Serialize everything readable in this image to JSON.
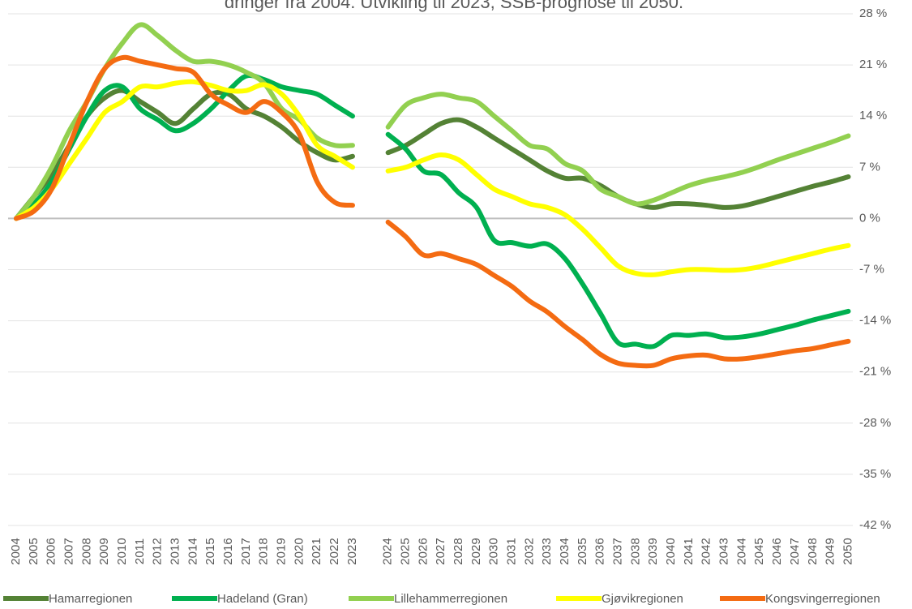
{
  "chart_data": {
    "type": "line",
    "title": "dringer fra 2004. Utvikling til 2023, SSB-prognose til 2050.",
    "categories": [
      "2004",
      "2005",
      "2006",
      "2007",
      "2008",
      "2009",
      "2010",
      "2011",
      "2012",
      "2013",
      "2014",
      "2015",
      "2016",
      "2017",
      "2018",
      "2019",
      "2020",
      "2021",
      "2022",
      "2023",
      null,
      "2024",
      "2025",
      "2026",
      "2027",
      "2028",
      "2029",
      "2030",
      "2031",
      "2032",
      "2033",
      "2034",
      "2035",
      "2036",
      "2037",
      "2038",
      "2039",
      "2040",
      "2041",
      "2042",
      "2043",
      "2044",
      "2045",
      "2046",
      "2047",
      "2048",
      "2049",
      "2050"
    ],
    "series": [
      {
        "name": "Hamarregionen",
        "color": "#548235",
        "values": [
          0,
          3,
          6,
          10,
          14,
          16.5,
          17.5,
          16,
          14.5,
          13,
          15,
          17,
          17,
          15,
          14,
          12.5,
          10.5,
          9,
          8,
          8.5,
          null,
          9,
          10,
          11.5,
          13,
          13.5,
          12.5,
          11,
          9.5,
          8,
          6.5,
          5.5,
          5.5,
          4.5,
          3,
          2,
          1.5,
          2,
          2,
          1.8,
          1.5,
          1.7,
          2.3,
          3,
          3.7,
          4.4,
          5,
          5.7
        ]
      },
      {
        "name": "Hadeland (Gran)",
        "color": "#00b050",
        "values": [
          0,
          2,
          5,
          9.5,
          14,
          17.5,
          18,
          15,
          13.5,
          12,
          13,
          15,
          17.5,
          19.5,
          19,
          18,
          17.5,
          17,
          15.5,
          14,
          null,
          11.5,
          9.5,
          6.5,
          6,
          3.5,
          1.5,
          -3,
          -3.3,
          -3.8,
          -3.5,
          -5.5,
          -9,
          -13,
          -17,
          -17.2,
          -17.5,
          -16,
          -16,
          -15.8,
          -16.3,
          -16.2,
          -15.8,
          -15.2,
          -14.6,
          -13.9,
          -13.3,
          -12.7
        ]
      },
      {
        "name": "Lillehammerregionen",
        "color": "#92d050",
        "values": [
          0,
          3,
          7,
          12,
          16,
          20.5,
          24,
          26.5,
          25,
          23,
          21.5,
          21.5,
          21,
          20,
          18.5,
          15,
          13.5,
          11,
          10,
          10,
          null,
          12.5,
          15.5,
          16.5,
          17,
          16.5,
          16,
          14,
          12,
          10,
          9.5,
          7.5,
          6.5,
          4,
          3,
          2,
          2.5,
          3.5,
          4.5,
          5.2,
          5.7,
          6.3,
          7.1,
          8,
          8.8,
          9.6,
          10.4,
          11.3
        ]
      },
      {
        "name": "Gjøvikregionen",
        "color": "#ffff00",
        "values": [
          0,
          1.5,
          4,
          7.5,
          11,
          14.5,
          16,
          18,
          18,
          18.5,
          18.7,
          18.2,
          17.5,
          17.5,
          18.3,
          17,
          14,
          10,
          8.5,
          7,
          null,
          6.5,
          7,
          8,
          8.7,
          8,
          6,
          4,
          3,
          2,
          1.5,
          0.5,
          -1.5,
          -4,
          -6.5,
          -7.5,
          -7.7,
          -7.3,
          -7,
          -7,
          -7.1,
          -7,
          -6.6,
          -6,
          -5.4,
          -4.8,
          -4.2,
          -3.7
        ]
      },
      {
        "name": "Kongsvingerregionen",
        "color": "#f46b12",
        "values": [
          0,
          1,
          4,
          10,
          16,
          20.5,
          22,
          21.5,
          21,
          20.5,
          20,
          17,
          15.5,
          14.5,
          16,
          14.5,
          11.5,
          5,
          2.2,
          1.8,
          null,
          -0.5,
          -2.5,
          -5,
          -4.8,
          -5.5,
          -6.3,
          -7.8,
          -9.3,
          -11.3,
          -12.8,
          -14.8,
          -16.6,
          -18.6,
          -19.8,
          -20.1,
          -20.1,
          -19.2,
          -18.8,
          -18.7,
          -19.2,
          -19.2,
          -18.9,
          -18.5,
          -18.1,
          -17.8,
          -17.3,
          -16.8
        ]
      }
    ],
    "ylim": [
      -42,
      28
    ],
    "yticks": [
      {
        "value": -42,
        "label": "-42 %"
      },
      {
        "value": -35,
        "label": "-35 %"
      },
      {
        "value": -28,
        "label": "-28 %"
      },
      {
        "value": -21,
        "label": "-21 %"
      },
      {
        "value": -14,
        "label": "-14 %"
      },
      {
        "value": -7,
        "label": "-7 %"
      },
      {
        "value": 0,
        "label": "0 %"
      },
      {
        "value": 7,
        "label": "7 %"
      },
      {
        "value": 14,
        "label": "14 %"
      },
      {
        "value": 21,
        "label": "21 %"
      },
      {
        "value": 28,
        "label": "28 %"
      }
    ],
    "grid": true
  }
}
